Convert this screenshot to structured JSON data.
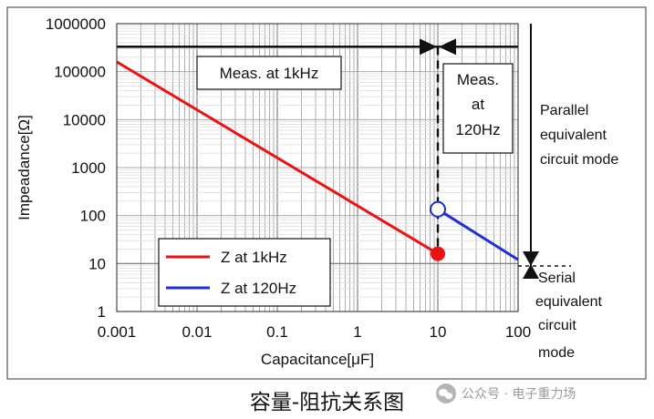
{
  "chart_data": {
    "type": "line",
    "xscale": "log",
    "yscale": "log",
    "xlim": [
      0.001,
      100
    ],
    "ylim": [
      1,
      1000000
    ],
    "xlabel": "Capacitance[μF]",
    "ylabel": "Impeadance[Ω]",
    "xticks": [
      "0.001",
      "0.01",
      "0.1",
      "1",
      "10",
      "100"
    ],
    "yticks": [
      "1",
      "10",
      "100",
      "1000",
      "10000",
      "100000",
      "1000000"
    ],
    "grid": true,
    "legend_position": "bottom-left",
    "series": [
      {
        "name": "Z at 1kHz",
        "color": "#ee1111",
        "x": [
          0.001,
          10
        ],
        "y": [
          160000,
          16
        ],
        "end_marker": "filled-circle"
      },
      {
        "name": "Z at 120Hz",
        "color": "#1f2fd6",
        "x": [
          10,
          100
        ],
        "y": [
          135,
          12
        ],
        "start_marker": "open-circle"
      }
    ],
    "reference_lines": {
      "parallel_level": {
        "y": 330000,
        "color": "#000000"
      },
      "serial_level": {
        "y": 10,
        "color": "#777777"
      },
      "boundary_x": 10
    },
    "annotations": {
      "meas_1k": "Meas. at 1kHz",
      "meas_120": [
        "Meas.",
        "at",
        "120Hz"
      ],
      "parallel": [
        "Parallel",
        "equivalent",
        "circuit mode"
      ],
      "serial": [
        "Serial",
        "equivalent",
        "circuit",
        "mode"
      ]
    }
  },
  "caption": "容量-阻抗关系图",
  "watermark": {
    "icon": "wechat-icon",
    "text": "公众号 · 电子重力场"
  }
}
